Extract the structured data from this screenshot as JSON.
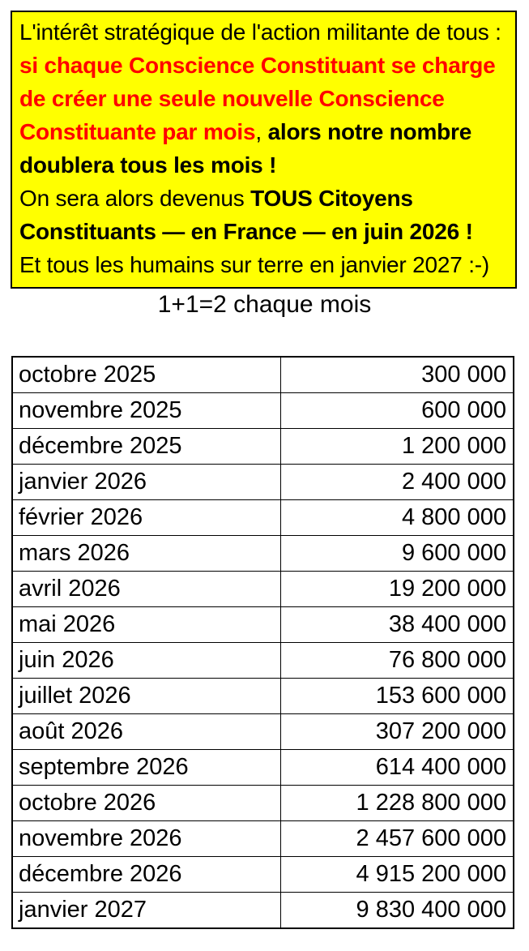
{
  "banner": {
    "background": "#ffff00",
    "border_color": "#000000",
    "text_color": "#000000",
    "red_color": "#ff0000",
    "lines": [
      {
        "segments": [
          {
            "text": "L'intérêt stratégique de l'action militante de tous :",
            "style": "plain"
          }
        ]
      },
      {
        "segments": [
          {
            "text": "si chaque Conscience Constituant se charge",
            "style": "red-bold"
          }
        ]
      },
      {
        "segments": [
          {
            "text": "de créer une seule nouvelle Conscience",
            "style": "red-bold"
          }
        ]
      },
      {
        "segments": [
          {
            "text": "Constituante par mois",
            "style": "red-bold"
          },
          {
            "text": ", ",
            "style": "plain"
          },
          {
            "text": "alors notre nombre",
            "style": "bold"
          }
        ]
      },
      {
        "segments": [
          {
            "text": "doublera tous les mois !",
            "style": "bold"
          }
        ]
      },
      {
        "segments": [
          {
            "text": "On sera alors devenus ",
            "style": "plain"
          },
          {
            "text": "TOUS Citoyens",
            "style": "bold"
          }
        ]
      },
      {
        "segments": [
          {
            "text": "Constituants — en France — en juin 2026 !",
            "style": "bold"
          }
        ]
      },
      {
        "segments": [
          {
            "text": "Et tous les humains sur terre en janvier 2027 :-)",
            "style": "plain"
          }
        ]
      }
    ]
  },
  "heading": {
    "text": "1+1=2 chaque mois"
  },
  "table": {
    "columns": [
      "month",
      "value"
    ],
    "rows": [
      {
        "month": "octobre 2025",
        "value": "300 000"
      },
      {
        "month": "novembre 2025",
        "value": "600 000"
      },
      {
        "month": "décembre 2025",
        "value": "1 200 000"
      },
      {
        "month": "janvier 2026",
        "value": "2 400 000"
      },
      {
        "month": "février 2026",
        "value": "4 800 000"
      },
      {
        "month": "mars 2026",
        "value": "9 600 000"
      },
      {
        "month": "avril 2026",
        "value": "19 200 000"
      },
      {
        "month": "mai 2026",
        "value": "38 400 000"
      },
      {
        "month": "juin 2026",
        "value": "76 800 000"
      },
      {
        "month": "juillet 2026",
        "value": "153 600 000"
      },
      {
        "month": "août 2026",
        "value": "307 200 000"
      },
      {
        "month": "septembre 2026",
        "value": "614 400 000"
      },
      {
        "month": "octobre 2026",
        "value": "1 228 800 000"
      },
      {
        "month": "novembre 2026",
        "value": "2 457 600 000"
      },
      {
        "month": "décembre 2026",
        "value": "4 915 200 000"
      },
      {
        "month": "janvier 2027",
        "value": "9 830 400 000"
      }
    ]
  }
}
